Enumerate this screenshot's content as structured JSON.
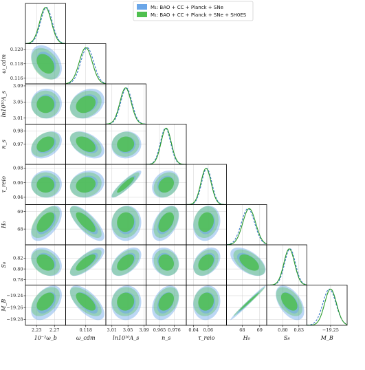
{
  "legend": [
    {
      "label": "M₁: BAO + CC + Planck + SNe",
      "color": "#6aa6e8",
      "line": "dashed",
      "line_color": "#3a78c8"
    },
    {
      "label": "M₁: BAO + CC + Planck + SNe + SH0ES",
      "color": "#4fc04f",
      "line": "solid",
      "line_color": "#2a9a2a"
    }
  ],
  "colors": {
    "blue_fill": "#6aa6e8",
    "blue_line": "#3a78c8",
    "green_fill": "#4fc04f",
    "green_line": "#2a9a2a",
    "grid": "#d0d0d0",
    "frame": "#000000"
  },
  "chart_data": {
    "type": "corner",
    "params": [
      {
        "name": "omega_b",
        "label": "10⁻²ω_b",
        "ticks": [
          2.23,
          2.27
        ],
        "tick_labels": [
          "2.23",
          "2.27"
        ],
        "range": [
          2.205,
          2.295
        ],
        "mean_blue": 2.252,
        "mean_green": 2.25,
        "sd_blue": 0.013,
        "sd_green": 0.013
      },
      {
        "name": "omega_cdm",
        "label": "ω_cdm",
        "ticks": [
          0.116,
          0.118,
          0.12
        ],
        "tick_labels": [
          "0.116",
          "0.118",
          "0.120"
        ],
        "range": [
          0.1152,
          0.1208
        ],
        "mean_blue": 0.1182,
        "mean_green": 0.118,
        "sd_blue": 0.0009,
        "sd_green": 0.0009
      },
      {
        "name": "ln10As",
        "label": "ln10¹⁰A_s",
        "ticks": [
          3.01,
          3.05,
          3.09
        ],
        "tick_labels": [
          "3.01",
          "3.05",
          "3.09"
        ],
        "range": [
          2.995,
          3.095
        ],
        "mean_blue": 3.046,
        "mean_green": 3.044,
        "sd_blue": 0.014,
        "sd_green": 0.014
      },
      {
        "name": "n_s",
        "label": "n_s",
        "ticks": [
          0.965,
          0.976
        ],
        "tick_labels": [
          "0.965",
          "0.976"
        ],
        "range": [
          0.955,
          0.985
        ],
        "mean_blue": 0.9695,
        "mean_green": 0.97,
        "sd_blue": 0.0038,
        "sd_green": 0.0038
      },
      {
        "name": "tau_reio",
        "label": "τ_reio",
        "ticks": [
          0.04,
          0.06,
          0.08
        ],
        "tick_labels": [
          "0.04",
          "0.06",
          "0.08"
        ],
        "range": [
          0.03,
          0.085
        ],
        "mean_blue": 0.058,
        "mean_green": 0.057,
        "sd_blue": 0.007,
        "sd_green": 0.007
      },
      {
        "name": "H0",
        "label": "H₀",
        "ticks": [
          68,
          69
        ],
        "tick_labels": [
          "68",
          "69"
        ],
        "range": [
          67.1,
          69.4
        ],
        "mean_blue": 68.33,
        "mean_green": 68.4,
        "sd_blue": 0.38,
        "sd_green": 0.37
      },
      {
        "name": "S8",
        "label": "S₈",
        "ticks": [
          0.78,
          0.8,
          0.82,
          0.83
        ],
        "tick_labels": [
          "0.78",
          "0.80",
          "0.82",
          "0.83"
        ],
        "range": [
          0.77,
          0.845
        ],
        "mean_blue": 0.8135,
        "mean_green": 0.812,
        "sd_blue": 0.01,
        "sd_green": 0.01
      },
      {
        "name": "M_B",
        "label": "M_B",
        "ticks": [
          -19.28,
          -19.26,
          -19.25,
          -19.24
        ],
        "tick_labels": [
          "−19.28",
          "−19.26",
          "−19.25",
          "−19.24"
        ],
        "range": [
          -19.29,
          -19.222
        ],
        "mean_blue": -19.252,
        "mean_green": -19.25,
        "sd_blue": 0.011,
        "sd_green": 0.01
      }
    ],
    "x_ticks": [
      {
        "param": 0,
        "ticks": [
          2.23,
          2.27
        ],
        "labels": [
          "2.23",
          "2.27"
        ]
      },
      {
        "param": 1,
        "ticks": [
          0.118
        ],
        "labels": [
          "0.118"
        ]
      },
      {
        "param": 2,
        "ticks": [
          3.01,
          3.05,
          3.09
        ],
        "labels": [
          "3.01",
          "3.05",
          "3.09"
        ]
      },
      {
        "param": 3,
        "ticks": [
          0.965,
          0.976
        ],
        "labels": [
          "0.965",
          "0.976"
        ]
      },
      {
        "param": 4,
        "ticks": [
          0.04,
          0.06
        ],
        "labels": [
          "0.04",
          "0.06"
        ]
      },
      {
        "param": 5,
        "ticks": [
          68,
          69
        ],
        "labels": [
          "68",
          "69"
        ]
      },
      {
        "param": 6,
        "ticks": [
          0.8,
          0.83
        ],
        "labels": [
          "0.80",
          "0.83"
        ]
      },
      {
        "param": 7,
        "ticks": [
          -19.25
        ],
        "labels": [
          "−19.25"
        ]
      }
    ],
    "y_ticks": [
      {
        "param": 1,
        "ticks": [
          0.116,
          0.118,
          0.12
        ],
        "labels": [
          "0.116",
          "0.118",
          "0.120"
        ]
      },
      {
        "param": 2,
        "ticks": [
          3.01,
          3.05,
          3.09
        ],
        "labels": [
          "3.01",
          "3.05",
          "3.09"
        ]
      },
      {
        "param": 3,
        "ticks": [
          0.97,
          0.98
        ],
        "labels": [
          "0.97",
          "0.98"
        ]
      },
      {
        "param": 4,
        "ticks": [
          0.04,
          0.06,
          0.08
        ],
        "labels": [
          "0.04",
          "0.06",
          "0.08"
        ]
      },
      {
        "param": 5,
        "ticks": [
          68,
          69
        ],
        "labels": [
          "68",
          "69"
        ]
      },
      {
        "param": 6,
        "ticks": [
          0.78,
          0.8,
          0.82
        ],
        "labels": [
          "0.78",
          "0.80",
          "0.82"
        ]
      },
      {
        "param": 7,
        "ticks": [
          -19.28,
          -19.26,
          -19.24
        ],
        "labels": [
          "−19.28",
          "−19.26",
          "−19.24"
        ]
      }
    ],
    "correlations": [
      [
        1,
        0,
        -0.35
      ],
      [
        2,
        0,
        0.0
      ],
      [
        2,
        1,
        0.25
      ],
      [
        3,
        0,
        0.35
      ],
      [
        3,
        1,
        -0.45
      ],
      [
        3,
        2,
        0.05
      ],
      [
        4,
        0,
        0.0
      ],
      [
        4,
        1,
        0.15
      ],
      [
        4,
        2,
        0.9
      ],
      [
        4,
        3,
        0.25
      ],
      [
        5,
        0,
        0.55
      ],
      [
        5,
        1,
        -0.75
      ],
      [
        5,
        2,
        0.05
      ],
      [
        5,
        3,
        0.45
      ],
      [
        5,
        4,
        0.15
      ],
      [
        6,
        0,
        -0.3
      ],
      [
        6,
        1,
        0.75
      ],
      [
        6,
        2,
        0.5
      ],
      [
        6,
        3,
        -0.15
      ],
      [
        6,
        4,
        0.35
      ],
      [
        6,
        5,
        -0.55
      ],
      [
        7,
        0,
        0.45
      ],
      [
        7,
        1,
        -0.65
      ],
      [
        7,
        2,
        0.05
      ],
      [
        7,
        3,
        0.35
      ],
      [
        7,
        4,
        0.1
      ],
      [
        7,
        5,
        0.99
      ],
      [
        7,
        6,
        -0.5
      ]
    ]
  }
}
